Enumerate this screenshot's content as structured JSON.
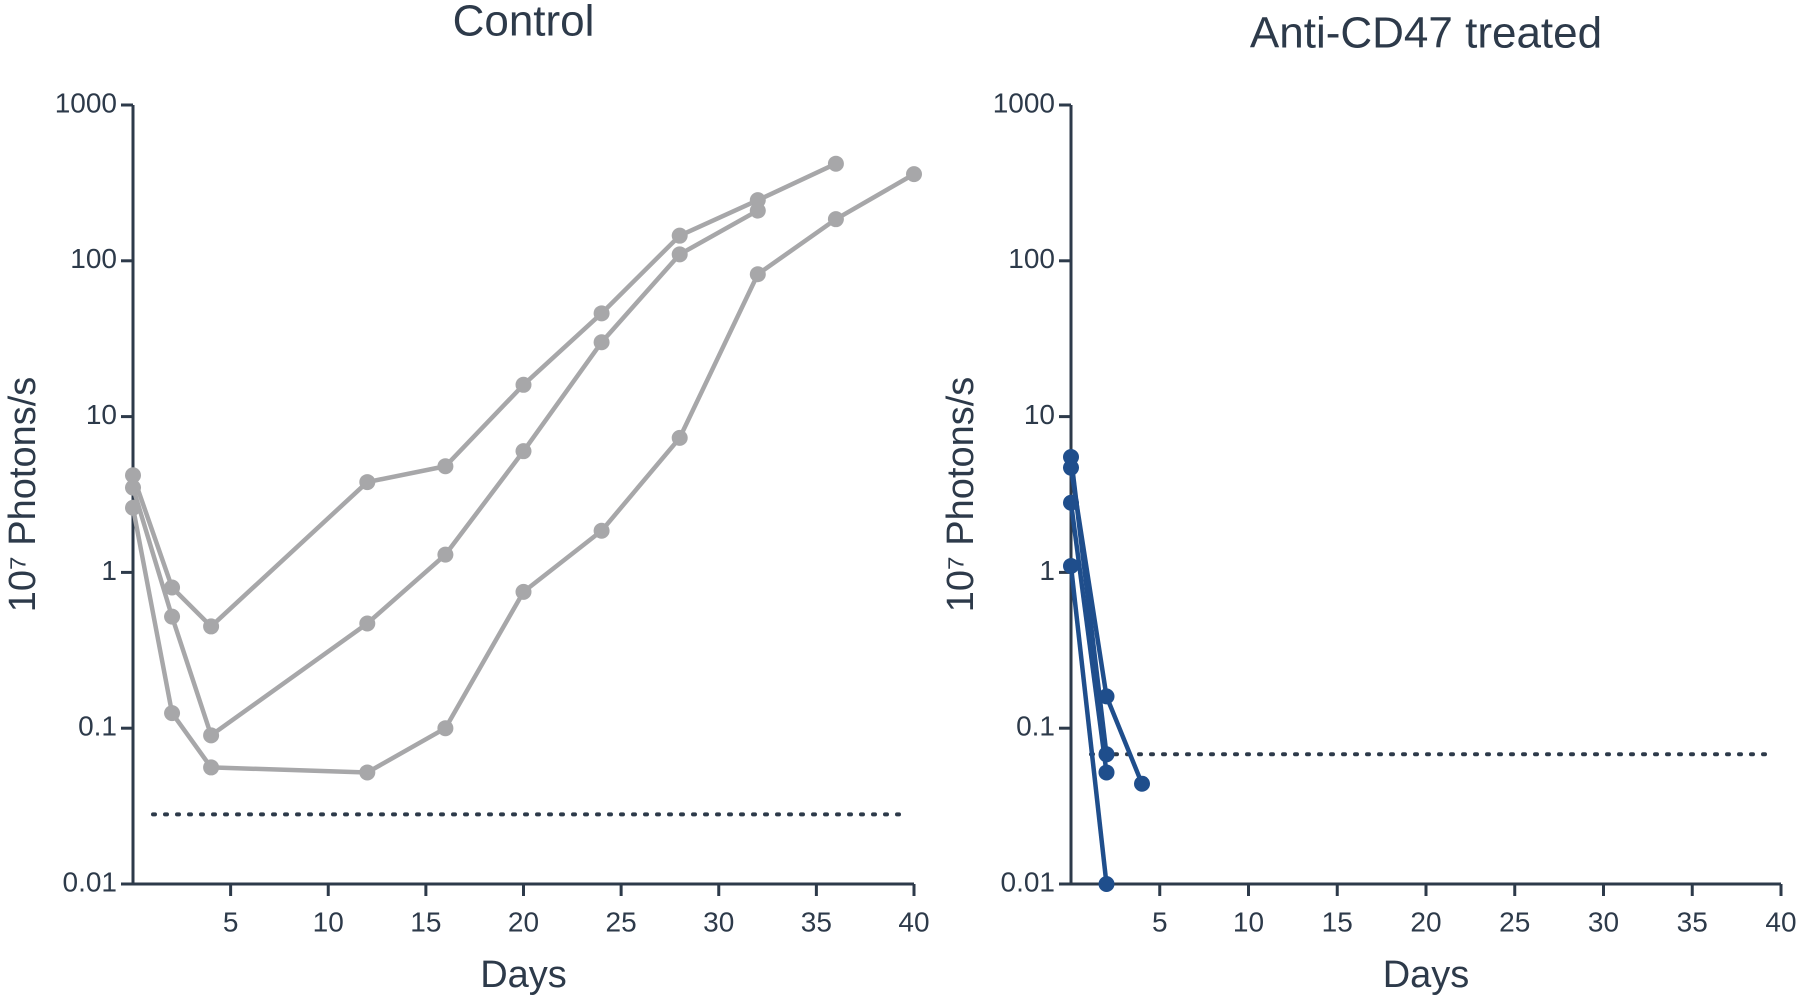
{
  "chart_data": [
    {
      "type": "line",
      "title": "Control",
      "xlabel": "Days",
      "ylabel": "10⁷ Photons/s",
      "x": [
        0,
        2,
        4,
        12,
        16,
        20,
        24,
        28,
        32,
        36,
        40
      ],
      "series": [
        {
          "color": "#a7a7a9",
          "values": [
            4.2,
            0.8,
            0.45,
            3.8,
            4.8,
            16,
            46,
            145,
            245,
            420,
            null
          ]
        },
        {
          "color": "#a7a7a9",
          "values": [
            3.5,
            0.52,
            0.09,
            0.47,
            1.3,
            6,
            30,
            110,
            210,
            null,
            null
          ]
        },
        {
          "color": "#a7a7a9",
          "values": [
            2.6,
            0.125,
            0.056,
            0.052,
            0.1,
            0.75,
            1.85,
            7.3,
            82,
            185,
            360
          ]
        }
      ],
      "threshold": 0.028,
      "threshold_color": "#2d3a4a",
      "xlim": [
        0,
        40
      ],
      "xticks": [
        5,
        10,
        15,
        20,
        25,
        30,
        35,
        40
      ],
      "ylim": [
        0.01,
        1000
      ],
      "yticks": [
        0.01,
        0.1,
        1,
        10,
        100,
        1000
      ],
      "log_y": true
    },
    {
      "type": "line",
      "title": "Anti-CD47 treated",
      "xlabel": "Days",
      "ylabel": "10⁷ Photons/s",
      "x": [
        0,
        2,
        4
      ],
      "series": [
        {
          "color": "#1f4e8c",
          "values": [
            5.5,
            0.068,
            null
          ]
        },
        {
          "color": "#1f4e8c",
          "values": [
            4.7,
            0.16,
            0.044
          ]
        },
        {
          "color": "#1f4e8c",
          "values": [
            2.8,
            0.052,
            null
          ]
        },
        {
          "color": "#1f4e8c",
          "values": [
            1.1,
            0.01,
            null
          ]
        }
      ],
      "threshold": 0.068,
      "threshold_color": "#2d3a4a",
      "xlim": [
        0,
        40
      ],
      "xticks": [
        5,
        10,
        15,
        20,
        25,
        30,
        35,
        40
      ],
      "ylim": [
        0.01,
        1000
      ],
      "yticks": [
        0.01,
        0.1,
        1,
        10,
        100,
        1000
      ],
      "log_y": true
    }
  ]
}
